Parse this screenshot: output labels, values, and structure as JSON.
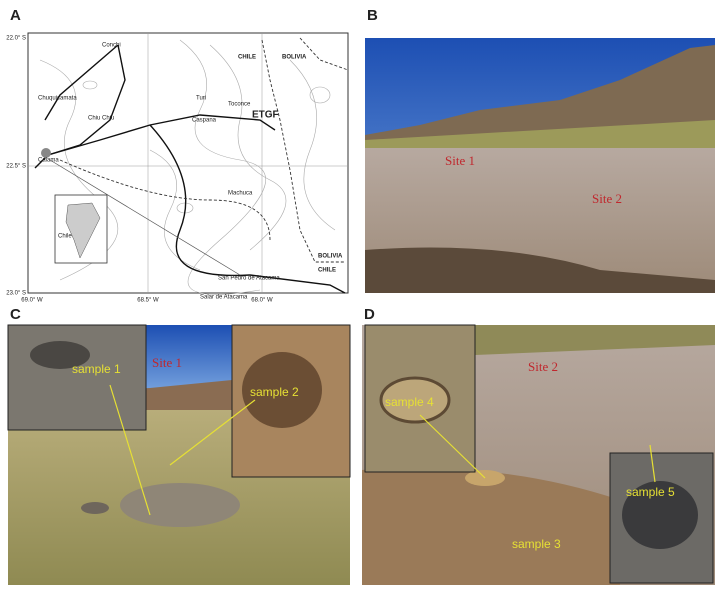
{
  "panels": {
    "A": {
      "label": "A",
      "lat_labels": [
        "22.0° S",
        "22.5° S",
        "23.0° S"
      ],
      "lon_labels": [
        "69.0° W",
        "68.5° W",
        "68.0° W"
      ],
      "places": [
        "Conchi",
        "CHILE",
        "BOLIVIA",
        "Chuquicamata",
        "Chiu Chiu",
        "Turi",
        "Toconce",
        "Caspana",
        "ETGF",
        "Calama",
        "Machuca",
        "Chile",
        "San Pedro de Atacama",
        "Salar de Atacama",
        "BOLIVIA",
        "CHILE"
      ]
    },
    "B": {
      "label": "B",
      "annotations": [
        "Site 1",
        "Site 2"
      ]
    },
    "C": {
      "label": "C",
      "annotations": [
        "Site 1",
        "sample 1",
        "sample 2"
      ]
    },
    "D": {
      "label": "D",
      "annotations": [
        "Site 2",
        "sample 4",
        "sample 5",
        "sample 3"
      ]
    }
  }
}
